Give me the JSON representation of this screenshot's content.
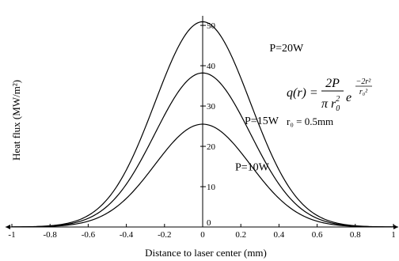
{
  "chart_data": {
    "type": "line",
    "xlabel": "Distance to laser center (mm)",
    "ylabel": "Heat flux (MW/m²)",
    "xlim": [
      -1,
      1
    ],
    "ylim": [
      0,
      52
    ],
    "x_ticks": [
      "-1",
      "-0.8",
      "-0.6",
      "-0.4",
      "-0.2",
      "0",
      "0.2",
      "0.4",
      "0.6",
      "0.8",
      "1"
    ],
    "x_tick_values": [
      -1,
      -0.8,
      -0.6,
      -0.4,
      -0.2,
      0,
      0.2,
      0.4,
      0.6,
      0.8,
      1
    ],
    "y_ticks": [
      "0",
      "10",
      "20",
      "30",
      "40",
      "50"
    ],
    "y_tick_values": [
      0,
      10,
      20,
      30,
      40,
      50
    ],
    "grid": false,
    "series": [
      {
        "name": "P=20W",
        "peak": 50.9,
        "r0": 0.5,
        "color": "#000000"
      },
      {
        "name": "P=15W",
        "peak": 38.2,
        "r0": 0.5,
        "color": "#000000"
      },
      {
        "name": "P=10W",
        "peak": 25.5,
        "r0": 0.5,
        "color": "#000000"
      }
    ],
    "formula": {
      "lhs": "q(r) =",
      "numerator": "2P",
      "denominator": "π r",
      "denominator_sub": "0",
      "denominator_sup": "2",
      "exp_base": "e",
      "exp_numerator": "−2r²",
      "exp_denominator": "r₀²",
      "r0_line": "r₀ = 0.5mm"
    }
  }
}
